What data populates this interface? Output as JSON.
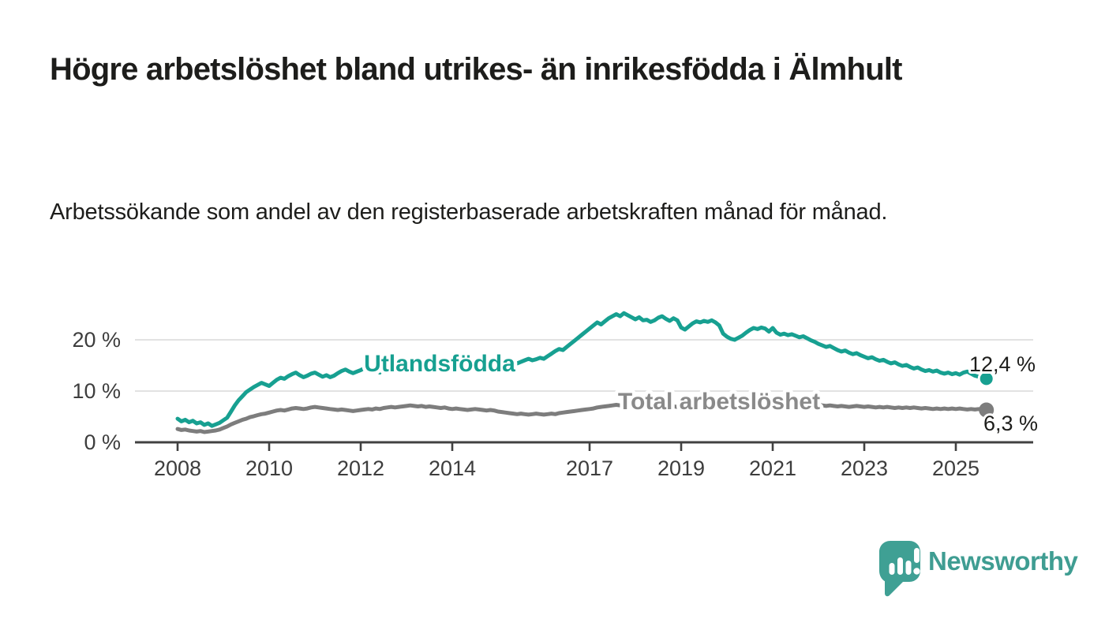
{
  "header": {
    "title": "Högre arbetslöshet bland utrikes- än inrikesfödda i Älmhult",
    "subtitle": "Arbetssökande som andel av den registerbaserade arbetskraften månad för månad."
  },
  "chart_data": {
    "type": "line",
    "unit": "%",
    "x_start": {
      "year": 2008,
      "month": 1
    },
    "x_end": {
      "year": 2025,
      "month": 9
    },
    "x_ticks": [
      2008,
      2010,
      2012,
      2014,
      2017,
      2019,
      2021,
      2023,
      2025
    ],
    "y_ticks": [
      {
        "value": 0,
        "label": "0 %"
      },
      {
        "value": 10,
        "label": "10 %"
      },
      {
        "value": 20,
        "label": "20 %"
      }
    ],
    "ylim": [
      0,
      27
    ],
    "grid": "horizontal-only",
    "legend_position": "inline-labels-on-lines",
    "series": [
      {
        "id": "utlandsfodda",
        "name": "Utlandsfödda",
        "color": "#17a091",
        "end_label": "12,4 %",
        "end_value": 12.4,
        "values": [
          4.6,
          4.1,
          4.4,
          3.9,
          4.2,
          3.7,
          3.9,
          3.4,
          3.7,
          3.2,
          3.5,
          3.8,
          4.3,
          4.8,
          6.0,
          7.2,
          8.2,
          9.0,
          9.8,
          10.3,
          10.8,
          11.2,
          11.6,
          11.3,
          11.0,
          11.6,
          12.2,
          12.6,
          12.4,
          12.9,
          13.3,
          13.6,
          13.1,
          12.7,
          13.0,
          13.4,
          13.6,
          13.2,
          12.8,
          13.1,
          12.7,
          13.0,
          13.5,
          13.9,
          14.2,
          13.8,
          13.5,
          13.8,
          14.1,
          14.5,
          14.2,
          13.8,
          14.0,
          13.6,
          14.4,
          14.9,
          15.0,
          14.6,
          14.3,
          14.6,
          14.9,
          15.2,
          15.5,
          15.1,
          15.4,
          14.9,
          15.2,
          15.6,
          15.3,
          15.0,
          14.7,
          15.0,
          15.3,
          15.0,
          15.4,
          15.7,
          15.3,
          15.0,
          15.5,
          15.8,
          16.0,
          15.6,
          15.3,
          15.6,
          15.9,
          16.2,
          15.8,
          15.5,
          15.8,
          15.4,
          15.7,
          16.0,
          16.3,
          16.0,
          16.2,
          16.5,
          16.3,
          16.8,
          17.3,
          17.8,
          18.2,
          18.0,
          18.6,
          19.2,
          19.8,
          20.4,
          21.0,
          21.6,
          22.2,
          22.8,
          23.4,
          23.0,
          23.6,
          24.2,
          24.6,
          25.0,
          24.6,
          25.2,
          24.8,
          24.4,
          24.0,
          24.4,
          23.8,
          23.9,
          23.5,
          23.8,
          24.3,
          24.6,
          24.1,
          23.7,
          24.2,
          23.8,
          22.4,
          22.0,
          22.6,
          23.2,
          23.6,
          23.4,
          23.7,
          23.5,
          23.8,
          23.4,
          22.8,
          21.2,
          20.6,
          20.2,
          20.0,
          20.4,
          20.8,
          21.4,
          21.9,
          22.3,
          22.1,
          22.4,
          22.2,
          21.6,
          22.3,
          21.4,
          21.0,
          21.2,
          20.9,
          21.1,
          20.8,
          20.5,
          20.7,
          20.3,
          19.9,
          19.6,
          19.2,
          18.9,
          18.6,
          18.8,
          18.4,
          18.0,
          17.7,
          17.9,
          17.5,
          17.2,
          17.4,
          17.0,
          16.7,
          16.4,
          16.6,
          16.2,
          15.9,
          16.1,
          15.7,
          15.4,
          15.6,
          15.2,
          14.9,
          15.1,
          14.7,
          14.4,
          14.6,
          14.2,
          13.9,
          14.1,
          13.8,
          14.0,
          13.6,
          13.4,
          13.6,
          13.3,
          13.5,
          13.2,
          13.6,
          13.8,
          13.4,
          13.0,
          12.8,
          12.6,
          12.4
        ]
      },
      {
        "id": "total-arbetsloshet",
        "name": "Total arbetslöshet",
        "color": "#7d7d7d",
        "end_label": "6,3 %",
        "end_value": 6.3,
        "values": [
          2.6,
          2.4,
          2.5,
          2.3,
          2.2,
          2.1,
          2.2,
          2.0,
          2.1,
          2.2,
          2.3,
          2.5,
          2.8,
          3.1,
          3.5,
          3.8,
          4.1,
          4.4,
          4.6,
          4.9,
          5.1,
          5.3,
          5.5,
          5.6,
          5.8,
          6.0,
          6.2,
          6.3,
          6.2,
          6.4,
          6.6,
          6.7,
          6.6,
          6.5,
          6.6,
          6.8,
          6.9,
          6.8,
          6.7,
          6.6,
          6.5,
          6.4,
          6.3,
          6.4,
          6.3,
          6.2,
          6.1,
          6.2,
          6.3,
          6.4,
          6.5,
          6.4,
          6.6,
          6.5,
          6.7,
          6.8,
          6.9,
          6.8,
          6.9,
          7.0,
          7.1,
          7.2,
          7.1,
          7.0,
          7.1,
          6.9,
          7.0,
          6.9,
          6.8,
          6.7,
          6.8,
          6.6,
          6.5,
          6.6,
          6.5,
          6.4,
          6.3,
          6.4,
          6.5,
          6.4,
          6.3,
          6.2,
          6.3,
          6.2,
          6.0,
          5.9,
          5.8,
          5.7,
          5.6,
          5.5,
          5.6,
          5.5,
          5.4,
          5.5,
          5.6,
          5.5,
          5.4,
          5.5,
          5.6,
          5.5,
          5.7,
          5.8,
          5.9,
          6.0,
          6.1,
          6.2,
          6.3,
          6.4,
          6.5,
          6.6,
          6.8,
          6.9,
          7.0,
          7.1,
          7.2,
          7.3,
          7.2,
          7.3,
          7.4,
          7.3,
          7.2,
          7.3,
          7.2,
          7.1,
          7.0,
          7.1,
          7.2,
          7.1,
          7.0,
          7.1,
          7.0,
          6.9,
          7.0,
          7.1,
          7.0,
          7.1,
          7.2,
          7.1,
          7.2,
          7.3,
          7.2,
          7.3,
          7.4,
          7.5,
          7.7,
          7.9,
          8.1,
          8.2,
          8.1,
          8.0,
          7.9,
          7.8,
          7.7,
          7.6,
          7.5,
          7.6,
          7.7,
          7.6,
          7.5,
          7.4,
          7.5,
          7.4,
          7.3,
          7.4,
          7.3,
          7.2,
          7.3,
          7.2,
          7.3,
          7.2,
          7.1,
          7.2,
          7.1,
          7.0,
          7.1,
          7.0,
          6.9,
          7.0,
          7.1,
          7.0,
          6.9,
          7.0,
          6.9,
          6.8,
          6.9,
          6.8,
          6.9,
          6.8,
          6.7,
          6.8,
          6.7,
          6.8,
          6.7,
          6.8,
          6.7,
          6.6,
          6.7,
          6.6,
          6.5,
          6.6,
          6.5,
          6.6,
          6.5,
          6.6,
          6.5,
          6.6,
          6.5,
          6.4,
          6.5,
          6.4,
          6.5,
          6.4,
          6.3
        ]
      }
    ]
  },
  "branding": {
    "wordmark": "Newsworthy",
    "logo_icon": "speech-bubble-bar-chart",
    "brand_color": "#3fa094"
  },
  "colors": {
    "accent_teal": "#17a091",
    "line_gray": "#7d7d7d",
    "label_gray": "#8a8a8a",
    "axis": "#414141",
    "grid": "#d8d8d8",
    "text_dark": "#1d1d1b"
  }
}
